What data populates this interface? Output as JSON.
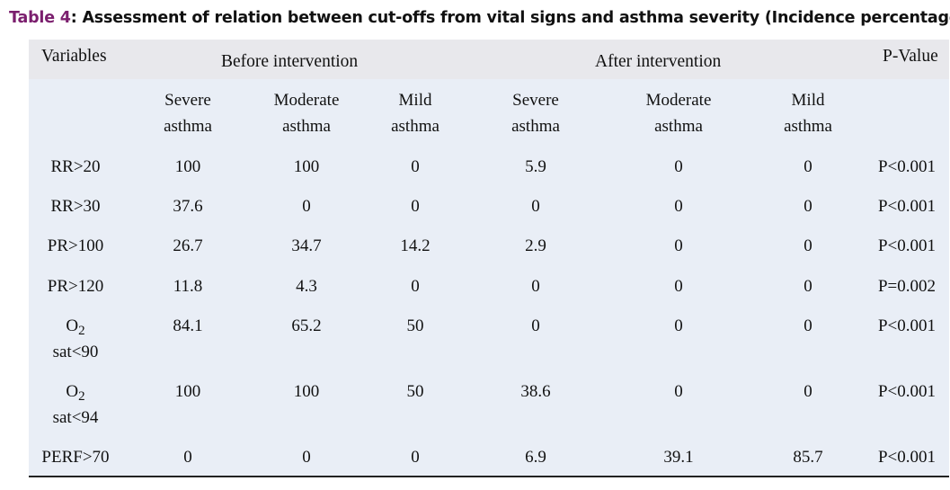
{
  "caption": {
    "label": "Table 4",
    "text": ": Assessment of relation between cut-offs from vital signs and asthma severity (Incidence percentage)"
  },
  "header": {
    "variables": "Variables",
    "before": "Before intervention",
    "after": "After intervention",
    "pvalue": "P-Value"
  },
  "subheader": {
    "severe_1": "Severe",
    "severe_2": "asthma",
    "moderate_1": "Moderate",
    "moderate_2": "asthma",
    "mild_1": "Mild",
    "mild_2": "asthma"
  },
  "rows": [
    {
      "var": "RR>20",
      "b_severe": "100",
      "b_moderate": "100",
      "b_mild": "0",
      "a_severe": "5.9",
      "a_moderate": "0",
      "a_mild": "0",
      "p": "P<0.001"
    },
    {
      "var": "RR>30",
      "b_severe": "37.6",
      "b_moderate": "0",
      "b_mild": "0",
      "a_severe": "0",
      "a_moderate": "0",
      "a_mild": "0",
      "p": "P<0.001"
    },
    {
      "var": "PR>100",
      "b_severe": "26.7",
      "b_moderate": "34.7",
      "b_mild": "14.2",
      "a_severe": "2.9",
      "a_moderate": "0",
      "a_mild": "0",
      "p": "P<0.001"
    },
    {
      "var": "PR>120",
      "b_severe": "11.8",
      "b_moderate": "4.3",
      "b_mild": "0",
      "a_severe": "0",
      "a_moderate": "0",
      "a_mild": "0",
      "p": "P=0.002"
    },
    {
      "var_main": "O",
      "var_sub": "2",
      "var_2": "sat<90",
      "b_severe": "84.1",
      "b_moderate": "65.2",
      "b_mild": "50",
      "a_severe": "0",
      "a_moderate": "0",
      "a_mild": "0",
      "p": "P<0.001"
    },
    {
      "var_main": "O",
      "var_sub": "2",
      "var_2": "sat<94",
      "b_severe": "100",
      "b_moderate": "100",
      "b_mild": "50",
      "a_severe": "38.6",
      "a_moderate": "0",
      "a_mild": "0",
      "p": "P<0.001"
    },
    {
      "var": "PERF>70",
      "b_severe": "0",
      "b_moderate": "0",
      "b_mild": "0",
      "a_severe": "6.9",
      "a_moderate": "39.1",
      "a_mild": "85.7",
      "p": "P<0.001"
    }
  ]
}
